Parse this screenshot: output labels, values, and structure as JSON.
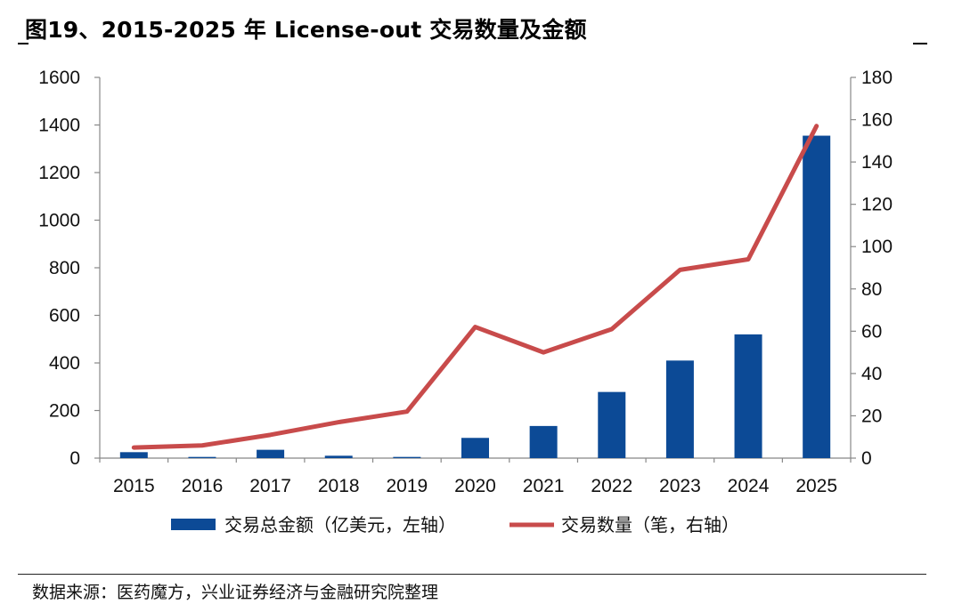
{
  "title": "图19、2015-2025 年 License-out 交易数量及金额",
  "source": "数据来源：医药魔方，兴业证券经济与金融研究院整理",
  "chart_data": {
    "type": "bar+line",
    "categories": [
      "2015",
      "2016",
      "2017",
      "2018",
      "2019",
      "2020",
      "2021",
      "2022",
      "2023",
      "2024",
      "2025"
    ],
    "series": [
      {
        "name": "交易总金额（亿美元，左轴）",
        "type": "bar",
        "axis": "left",
        "color": "#0c4a96",
        "values": [
          25,
          5,
          35,
          10,
          5,
          85,
          135,
          278,
          410,
          520,
          1355
        ]
      },
      {
        "name": "交易数量（笔，右轴）",
        "type": "line",
        "axis": "right",
        "color": "#c84b4b",
        "values": [
          5,
          6,
          11,
          17,
          22,
          62,
          50,
          61,
          89,
          94,
          157
        ]
      }
    ],
    "left_axis": {
      "min": 0,
      "max": 1600,
      "ticks": [
        "0",
        "200",
        "400",
        "600",
        "800",
        "1000",
        "1200",
        "1400",
        "1600"
      ]
    },
    "right_axis": {
      "min": 0,
      "max": 180,
      "ticks": [
        "0",
        "20",
        "40",
        "60",
        "80",
        "100",
        "120",
        "140",
        "160",
        "180"
      ]
    },
    "legend_position": "bottom"
  }
}
